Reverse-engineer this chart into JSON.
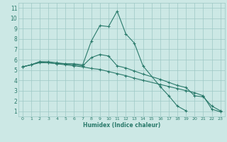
{
  "line1_x": [
    0,
    1,
    2,
    3,
    4,
    5,
    6,
    7,
    8,
    9,
    10,
    11,
    12,
    13,
    14,
    16,
    17,
    18,
    19,
    20,
    21,
    22,
    23
  ],
  "line1_y": [
    5.3,
    5.5,
    5.8,
    5.8,
    5.7,
    5.6,
    5.6,
    5.5,
    7.8,
    9.3,
    9.2,
    10.7,
    8.5,
    7.6,
    5.4,
    3.4,
    2.5,
    1.5,
    1.05,
    null,
    null,
    null,
    null
  ],
  "line2_x": [
    0,
    1,
    2,
    3,
    4,
    5,
    6,
    7,
    8,
    9,
    10,
    11,
    12,
    13,
    14,
    16,
    17,
    18,
    19,
    20,
    21,
    22,
    23
  ],
  "line2_y": [
    5.3,
    5.5,
    5.8,
    5.7,
    5.6,
    5.6,
    5.5,
    5.4,
    6.2,
    6.5,
    6.35,
    5.4,
    5.2,
    4.9,
    4.6,
    4.1,
    3.8,
    3.5,
    3.3,
    2.5,
    2.4,
    1.5,
    1.05
  ],
  "line3_x": [
    0,
    1,
    2,
    3,
    4,
    5,
    6,
    7,
    8,
    9,
    10,
    11,
    12,
    13,
    14,
    16,
    17,
    18,
    19,
    20,
    21,
    22,
    23
  ],
  "line3_y": [
    5.3,
    5.5,
    5.7,
    5.7,
    5.6,
    5.5,
    5.4,
    5.3,
    5.15,
    5.05,
    4.85,
    4.65,
    4.45,
    4.2,
    4.0,
    3.6,
    3.4,
    3.2,
    3.0,
    2.8,
    2.5,
    1.2,
    0.95
  ],
  "line_color": "#2a7a6b",
  "bg_color": "#cce8e5",
  "grid_color": "#9ec8c4",
  "xlabel": "Humidex (Indice chaleur)",
  "xlim": [
    -0.5,
    23.5
  ],
  "ylim": [
    0.5,
    11.5
  ],
  "xticks": [
    0,
    1,
    2,
    3,
    4,
    5,
    6,
    7,
    8,
    9,
    10,
    11,
    12,
    13,
    14,
    15,
    16,
    17,
    18,
    19,
    20,
    21,
    22,
    23
  ],
  "yticks": [
    1,
    2,
    3,
    4,
    5,
    6,
    7,
    8,
    9,
    10,
    11
  ],
  "marker": "+"
}
